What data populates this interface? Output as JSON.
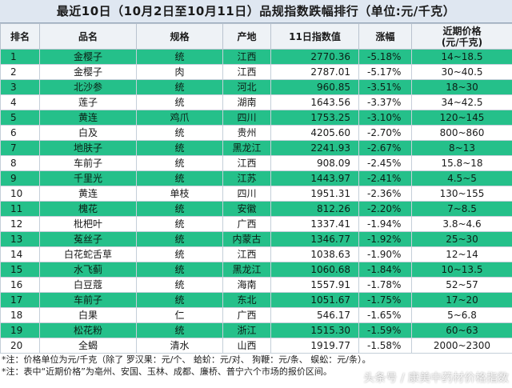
{
  "title": "最近10日（10月2日至10月11日）品规指数跌幅排行（单位:元/千克）",
  "headers": [
    "排名",
    "品名",
    "规格",
    "产地",
    "11日指数值",
    "涨幅",
    "近期价格",
    "(元/千克)"
  ],
  "rows": [
    {
      "rank": "1",
      "name": "金樱子",
      "spec": "统",
      "origin": "江西",
      "index": "2770.36",
      "change": "-5.18%",
      "price": "14~18.5"
    },
    {
      "rank": "2",
      "name": "金樱子",
      "spec": "肉",
      "origin": "江西",
      "index": "2787.01",
      "change": "-5.17%",
      "price": "30~40.5"
    },
    {
      "rank": "3",
      "name": "北沙参",
      "spec": "统",
      "origin": "河北",
      "index": "960.85",
      "change": "-3.51%",
      "price": "18~30"
    },
    {
      "rank": "4",
      "name": "莲子",
      "spec": "统",
      "origin": "湖南",
      "index": "1643.56",
      "change": "-3.37%",
      "price": "34~42.5"
    },
    {
      "rank": "5",
      "name": "黄连",
      "spec": "鸡爪",
      "origin": "四川",
      "index": "1753.25",
      "change": "-3.10%",
      "price": "120~145"
    },
    {
      "rank": "6",
      "name": "白及",
      "spec": "统",
      "origin": "贵州",
      "index": "4205.60",
      "change": "-2.70%",
      "price": "800~860"
    },
    {
      "rank": "7",
      "name": "地肤子",
      "spec": "统",
      "origin": "黑龙江",
      "index": "2241.93",
      "change": "-2.67%",
      "price": "8~13"
    },
    {
      "rank": "8",
      "name": "车前子",
      "spec": "统",
      "origin": "江西",
      "index": "908.09",
      "change": "-2.45%",
      "price": "15.8~18"
    },
    {
      "rank": "9",
      "name": "千里光",
      "spec": "统",
      "origin": "江苏",
      "index": "1443.97",
      "change": "-2.41%",
      "price": "4.5~5"
    },
    {
      "rank": "10",
      "name": "黄连",
      "spec": "单枝",
      "origin": "四川",
      "index": "1951.31",
      "change": "-2.36%",
      "price": "130~155"
    },
    {
      "rank": "11",
      "name": "槐花",
      "spec": "统",
      "origin": "安徽",
      "index": "812.26",
      "change": "-2.20%",
      "price": "7~8.5"
    },
    {
      "rank": "12",
      "name": "枇杷叶",
      "spec": "统",
      "origin": "广西",
      "index": "1337.41",
      "change": "-1.94%",
      "price": "3.8~4.6"
    },
    {
      "rank": "13",
      "name": "菟丝子",
      "spec": "统",
      "origin": "内蒙古",
      "index": "1346.77",
      "change": "-1.92%",
      "price": "25~30"
    },
    {
      "rank": "14",
      "name": "白花蛇舌草",
      "spec": "统",
      "origin": "江西",
      "index": "1038.63",
      "change": "-1.90%",
      "price": "12~14"
    },
    {
      "rank": "15",
      "name": "水飞蓟",
      "spec": "统",
      "origin": "黑龙江",
      "index": "1060.68",
      "change": "-1.84%",
      "price": "10~13.5"
    },
    {
      "rank": "16",
      "name": "白豆蔻",
      "spec": "统",
      "origin": "海南",
      "index": "1557.91",
      "change": "-1.78%",
      "price": "52~57"
    },
    {
      "rank": "17",
      "name": "车前子",
      "spec": "统",
      "origin": "东北",
      "index": "1051.67",
      "change": "-1.75%",
      "price": "17~20"
    },
    {
      "rank": "18",
      "name": "白果",
      "spec": "仁",
      "origin": "广西",
      "index": "546.17",
      "change": "-1.65%",
      "price": "5~6.8"
    },
    {
      "rank": "19",
      "name": "松花粉",
      "spec": "统",
      "origin": "浙江",
      "index": "1515.30",
      "change": "-1.59%",
      "price": "60~63"
    },
    {
      "rank": "20",
      "name": "全蝎",
      "spec": "清水",
      "origin": "山西",
      "index": "1919.77",
      "change": "-1.58%",
      "price": "2000~2300"
    }
  ],
  "notes": [
    "*注：价格单位为元/千克（除了 罗汉果：元/个、 蛤蚧：元/对、 狗鞭：元/条、 蜈蚣：元/条）。",
    "*注：表中“近期价格”为亳州、安国、玉林、成都、廉桥、普宁六个市场的报价区间。"
  ],
  "watermark": "头条号 / 康美中药材价格指数"
}
